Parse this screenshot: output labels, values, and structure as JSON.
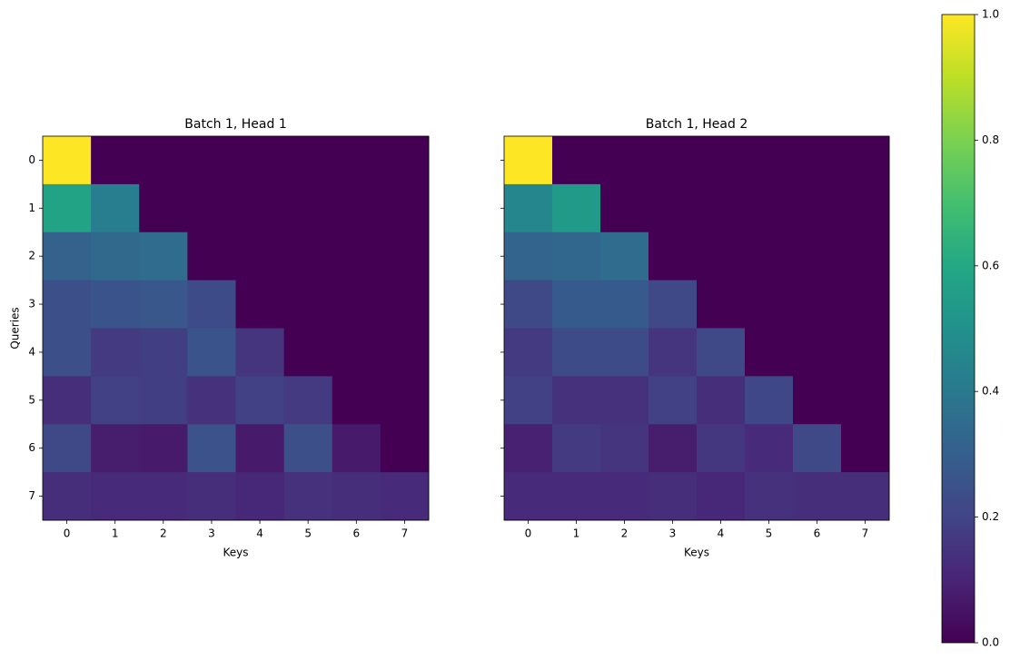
{
  "chart_data": [
    {
      "type": "heatmap",
      "title": "Batch 1, Head 1",
      "xlabel": "Keys",
      "ylabel": "Queries",
      "colormap": "viridis",
      "clim": [
        0,
        1
      ],
      "xlim": [
        -0.5,
        7.5
      ],
      "ylim": [
        7.5,
        -0.5
      ],
      "xticks": [
        0,
        1,
        2,
        3,
        4,
        5,
        6,
        7
      ],
      "yticks": [
        0,
        1,
        2,
        3,
        4,
        5,
        6,
        7
      ],
      "show_ytick_labels": true,
      "values": [
        [
          1.0,
          0,
          0,
          0,
          0,
          0,
          0,
          0
        ],
        [
          0.58,
          0.42,
          0,
          0,
          0,
          0,
          0,
          0
        ],
        [
          0.31,
          0.34,
          0.35,
          0,
          0,
          0,
          0,
          0
        ],
        [
          0.24,
          0.26,
          0.27,
          0.23,
          0,
          0,
          0,
          0
        ],
        [
          0.24,
          0.17,
          0.18,
          0.26,
          0.15,
          0,
          0,
          0
        ],
        [
          0.13,
          0.19,
          0.18,
          0.14,
          0.19,
          0.17,
          0,
          0
        ],
        [
          0.22,
          0.08,
          0.07,
          0.25,
          0.07,
          0.24,
          0.07,
          0
        ],
        [
          0.13,
          0.12,
          0.12,
          0.13,
          0.11,
          0.14,
          0.13,
          0.12
        ]
      ]
    },
    {
      "type": "heatmap",
      "title": "Batch 1, Head 2",
      "xlabel": "Keys",
      "colormap": "viridis",
      "clim": [
        0,
        1
      ],
      "xlim": [
        -0.5,
        7.5
      ],
      "ylim": [
        7.5,
        -0.5
      ],
      "xticks": [
        0,
        1,
        2,
        3,
        4,
        5,
        6,
        7
      ],
      "yticks": [
        0,
        1,
        2,
        3,
        4,
        5,
        6,
        7
      ],
      "show_ytick_labels": false,
      "values": [
        [
          1.0,
          0,
          0,
          0,
          0,
          0,
          0,
          0
        ],
        [
          0.46,
          0.54,
          0,
          0,
          0,
          0,
          0,
          0
        ],
        [
          0.32,
          0.33,
          0.35,
          0,
          0,
          0,
          0,
          0
        ],
        [
          0.22,
          0.28,
          0.28,
          0.22,
          0,
          0,
          0,
          0
        ],
        [
          0.17,
          0.23,
          0.23,
          0.15,
          0.22,
          0,
          0,
          0
        ],
        [
          0.19,
          0.14,
          0.14,
          0.19,
          0.13,
          0.21,
          0,
          0
        ],
        [
          0.09,
          0.17,
          0.15,
          0.08,
          0.16,
          0.12,
          0.22,
          0
        ],
        [
          0.12,
          0.12,
          0.12,
          0.13,
          0.11,
          0.14,
          0.13,
          0.13
        ]
      ]
    },
    {
      "type": "colorbar",
      "colormap": "viridis",
      "clim": [
        0,
        1
      ],
      "ticks": [
        {
          "value": 0,
          "label": "0.0"
        },
        {
          "value": 0.2,
          "label": "0.2"
        },
        {
          "value": 0.4,
          "label": "0.4"
        },
        {
          "value": 0.6,
          "label": "0.6"
        },
        {
          "value": 0.8,
          "label": "0.8"
        },
        {
          "value": 1,
          "label": "1.0"
        }
      ]
    }
  ]
}
